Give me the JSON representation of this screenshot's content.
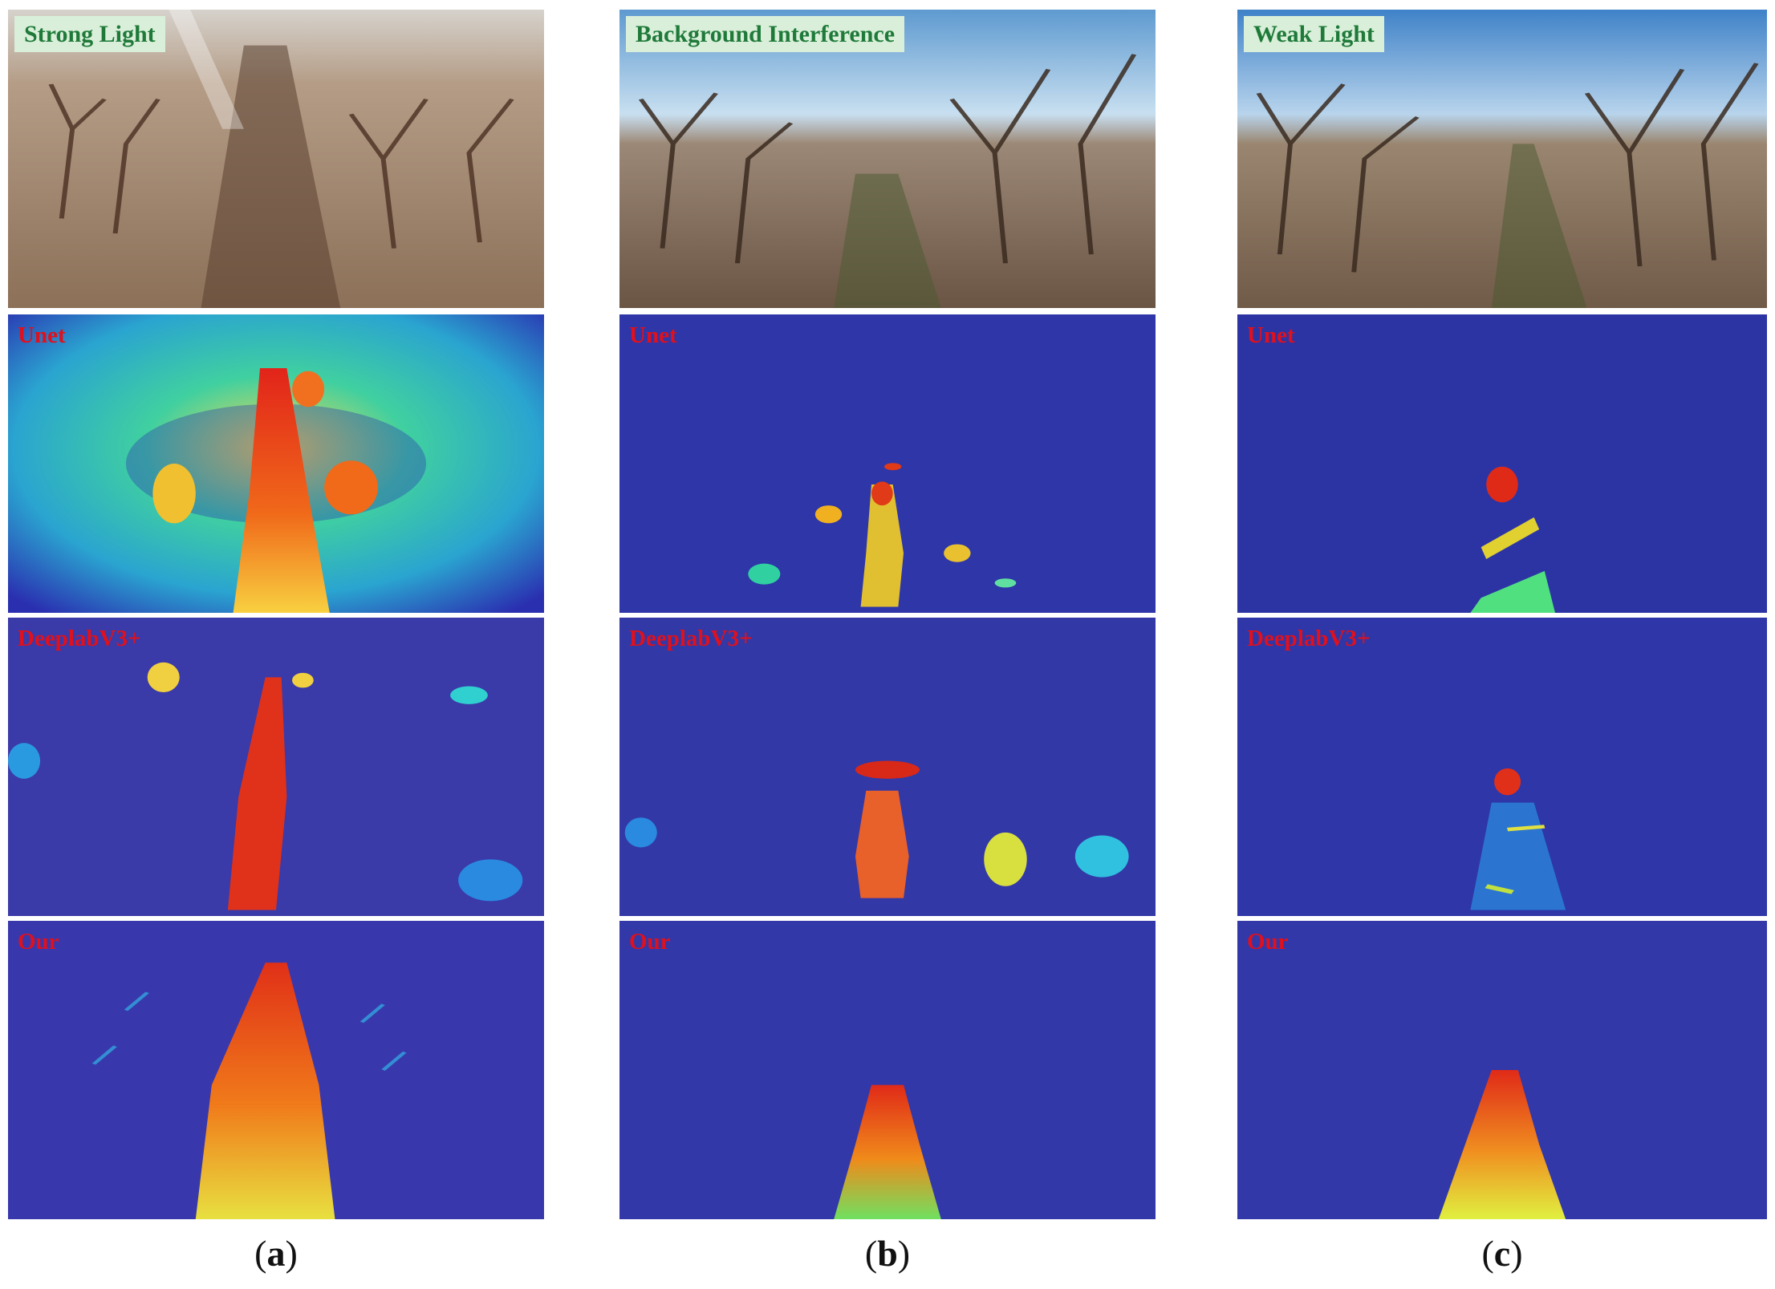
{
  "figure": {
    "columns": [
      {
        "id": "a",
        "scene": "Strong Light",
        "caption_letter": "a"
      },
      {
        "id": "b",
        "scene": "Background Interference",
        "caption_letter": "b"
      },
      {
        "id": "c",
        "scene": "Weak Light",
        "caption_letter": "c"
      }
    ],
    "methods": [
      "Unet",
      "DeeplabV3+",
      "Our"
    ],
    "caption_paren_open": "(",
    "caption_paren_close": ")"
  },
  "colors": {
    "heat_low": "#2a2fb0",
    "heat_mid": "#22c8c0",
    "heat_high": "#ffe03a",
    "heat_peak": "#d81e1e",
    "soil": "#a3876a",
    "sky": "#7fb4dc"
  }
}
